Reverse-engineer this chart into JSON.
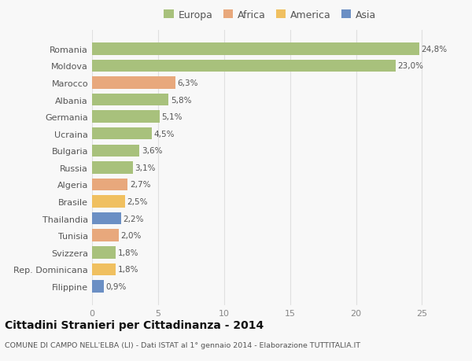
{
  "categories": [
    "Romania",
    "Moldova",
    "Marocco",
    "Albania",
    "Germania",
    "Ucraina",
    "Bulgaria",
    "Russia",
    "Algeria",
    "Brasile",
    "Thailandia",
    "Tunisia",
    "Svizzera",
    "Rep. Dominicana",
    "Filippine"
  ],
  "values": [
    24.8,
    23.0,
    6.3,
    5.8,
    5.1,
    4.5,
    3.6,
    3.1,
    2.7,
    2.5,
    2.2,
    2.0,
    1.8,
    1.8,
    0.9
  ],
  "bar_colors": [
    "#a8c17c",
    "#a8c17c",
    "#e8a87c",
    "#a8c17c",
    "#a8c17c",
    "#a8c17c",
    "#a8c17c",
    "#a8c17c",
    "#e8a87c",
    "#f0c060",
    "#6b8fc4",
    "#e8a87c",
    "#a8c17c",
    "#f0c060",
    "#6b8fc4"
  ],
  "legend_labels": [
    "Europa",
    "Africa",
    "America",
    "Asia"
  ],
  "legend_colors": [
    "#a8c17c",
    "#e8a87c",
    "#f0c060",
    "#6b8fc4"
  ],
  "title": "Cittadini Stranieri per Cittadinanza - 2014",
  "subtitle": "COMUNE DI CAMPO NELL'ELBA (LI) - Dati ISTAT al 1° gennaio 2014 - Elaborazione TUTTITALIA.IT",
  "xlim": [
    0,
    27
  ],
  "xticks": [
    0,
    5,
    10,
    15,
    20,
    25
  ],
  "bg_color": "#f8f8f8",
  "grid_color": "#e0e0e0",
  "bar_height": 0.72
}
